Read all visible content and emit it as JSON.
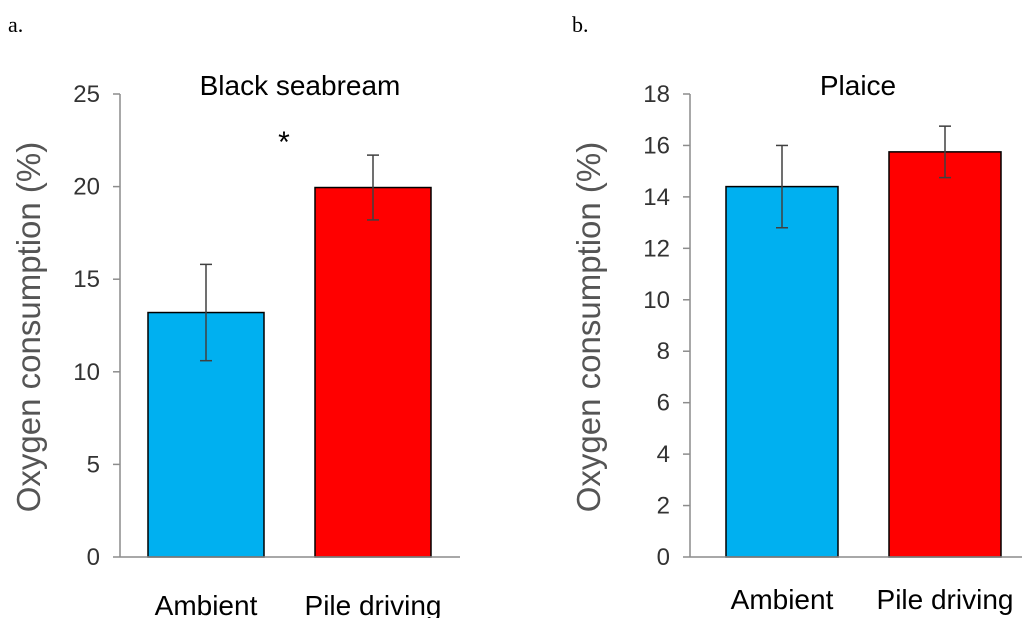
{
  "chart_data": [
    {
      "panel": "a.",
      "type": "bar",
      "title": "Black seabream",
      "ylabel": "Oxygen consumption (%)",
      "xlabel": "",
      "categories": [
        "Ambient",
        "Pile driving"
      ],
      "values": [
        13.2,
        19.95
      ],
      "errors": [
        2.6,
        1.75
      ],
      "colors": [
        "#00B0F0",
        "#FF0000"
      ],
      "ylim": [
        0,
        25
      ],
      "yticks": [
        0,
        5,
        10,
        15,
        20,
        25
      ],
      "significance": [
        "",
        "*"
      ],
      "grid": false
    },
    {
      "panel": "b.",
      "type": "bar",
      "title": "Plaice",
      "ylabel": "Oxygen consumption (%)",
      "xlabel": "",
      "categories": [
        "Ambient",
        "Pile driving"
      ],
      "values": [
        14.4,
        15.75
      ],
      "errors": [
        1.6,
        1.0
      ],
      "colors": [
        "#00B0F0",
        "#FF0000"
      ],
      "ylim": [
        0,
        18
      ],
      "yticks": [
        0,
        2,
        4,
        6,
        8,
        10,
        12,
        14,
        16,
        18
      ],
      "significance": [
        "",
        ""
      ],
      "grid": false
    }
  ]
}
